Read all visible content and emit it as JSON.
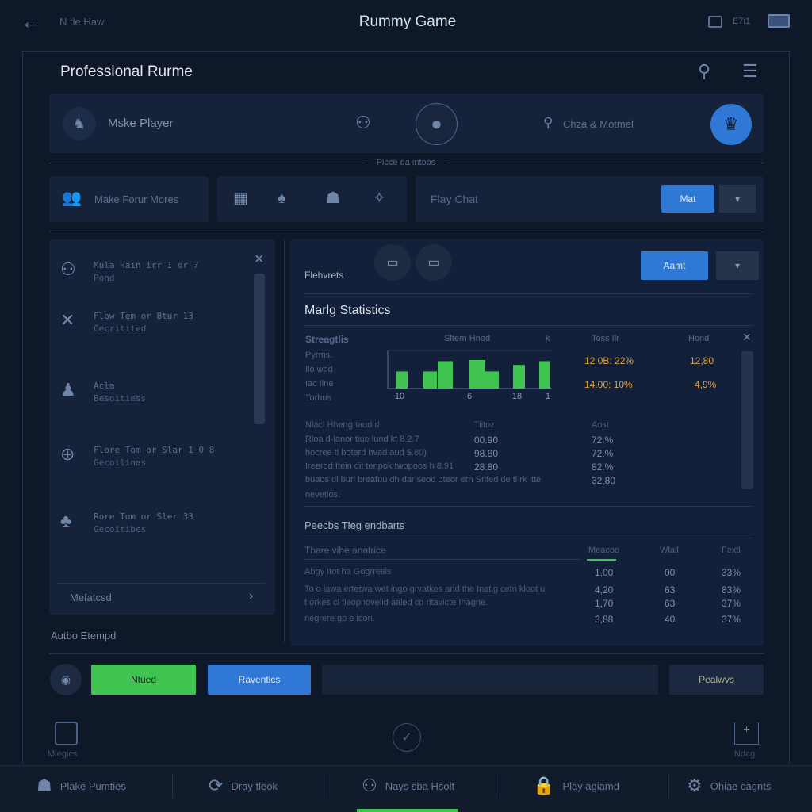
{
  "topbar": {
    "back_label": "N tle Haw",
    "title": "Rummy Game",
    "status_text": "E7i1"
  },
  "header": {
    "title": "Professional Rurme"
  },
  "player_card": {
    "name": "Mske Player",
    "search_placeholder": "Chza & Motmel"
  },
  "divider_label": "Picce da intoos",
  "row2": {
    "box1_label": "Make Forur Mores",
    "chat_label": "Flay Chat",
    "mat_button": "Mat"
  },
  "left_panel": {
    "items": [
      {
        "title": "Mula Hain irr I or 7",
        "sub": "Pond",
        "icon": "players-icon"
      },
      {
        "title": "Flow Tem or Btur 13",
        "sub": "Cecritited",
        "icon": "close-x-icon"
      },
      {
        "title": "Acla",
        "sub": "Besoitiess",
        "icon": "player-icon"
      },
      {
        "title": "Flore Tom or Slar 1 0 8",
        "sub": "Gecoilinas",
        "icon": "add-circle-icon"
      },
      {
        "title": "Rore Tom or Sler 33",
        "sub": "Gecoitibes",
        "icon": "clubs-icon"
      }
    ],
    "footer_label": "Mefatcsd"
  },
  "left_caption": "Autbo Etempd",
  "main": {
    "section_label": "Flehvrets",
    "amt_button": "Aamt",
    "stats_title": "Marlg Statistics",
    "stats_headers": [
      "Streagtlis",
      "Sltern Hnod",
      "k",
      "Toss Ilr",
      "Hond"
    ],
    "row_labels": [
      "Pyrms.",
      "Ilo wod",
      "Iac Ilne",
      "Torhus"
    ],
    "chart": {
      "bars": [
        0.45,
        0.45,
        0.72,
        0.75,
        0.45,
        0.62,
        0.72
      ],
      "bar_color": "#3fc451",
      "x_ticks": [
        "10",
        "6",
        "18",
        "1"
      ]
    },
    "highlight_rows": [
      {
        "a": "12 0B: 22%",
        "b": "12,80"
      },
      {
        "a": "14.00: 10%",
        "b": "4,9%"
      }
    ],
    "highlight_color": "#e0a040",
    "table": {
      "headers": [
        "Nlacl Hheng taud rl",
        "Tiitoz",
        "Aost"
      ],
      "rows": [
        [
          "Rloa d-lanor tiue lund kt 8.2.7",
          "00.90",
          "72.%"
        ],
        [
          "hocree tl boterd hvad aud $.80)",
          "98.80",
          "72.%"
        ],
        [
          "Ireerod Itein dit tenpok twopoos h 8.91",
          "28.80",
          "82.%"
        ],
        [
          "buaos dl buri breafuu dh dar seod oteor ern Srited de tl rk itte",
          "",
          "32,80"
        ],
        [
          "nevetlos.",
          "",
          ""
        ]
      ]
    },
    "section2_title": "Peecbs Tleg endbarts",
    "table2": {
      "headers": [
        "Thare vihe anatrice",
        "Meacoo",
        "Wlall",
        "Fextl"
      ],
      "rows": [
        [
          "Abgy Itot ha Gogrresis",
          "1,00",
          "00",
          "33%"
        ],
        [
          "To o lawa ertetwa wet ingo grvatkes and the Inatig cetn kloot u",
          "4,20",
          "63",
          "83%"
        ],
        [
          "t orkes cl tleopnovelid aaled co ritavicte Ihagne.",
          "1,70",
          "63",
          "37%"
        ],
        [
          "negrere go e icon.",
          "3,88",
          "40",
          "37%"
        ]
      ]
    }
  },
  "actions": {
    "green": "Ntued",
    "blue": "Raventics",
    "right": "Pealwvs",
    "green_color": "#3fc451",
    "blue_color": "#2f78d6"
  },
  "bottom_icons": {
    "left": "Mlegics",
    "right": "Ndag"
  },
  "nav": [
    {
      "label": "Plake Pumties",
      "icon": "person-icon"
    },
    {
      "label": "Dray tleok",
      "icon": "refresh-circle-icon"
    },
    {
      "label": "Nays sba Hsolt",
      "icon": "players-network-icon"
    },
    {
      "label": "Play agiamd",
      "icon": "lock-icon"
    },
    {
      "label": "Ohiae cagnts",
      "icon": "gear-icon"
    }
  ]
}
